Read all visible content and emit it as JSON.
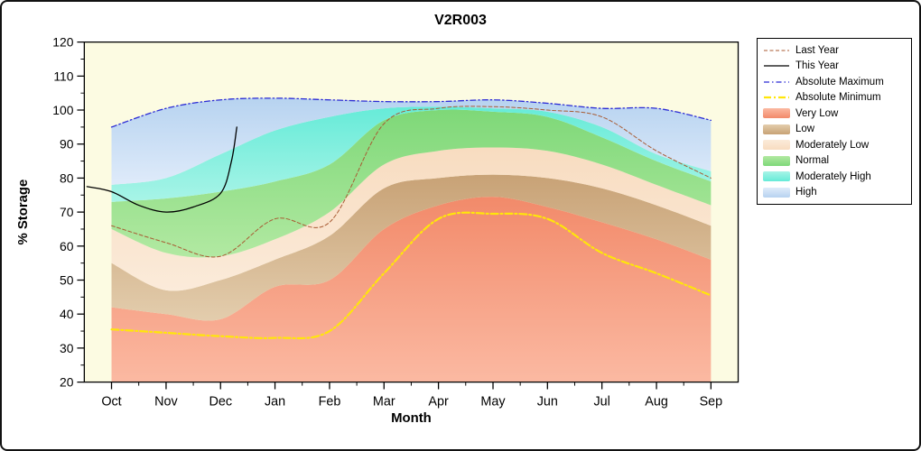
{
  "chart_data": {
    "type": "area",
    "title": "V2R003",
    "xlabel": "Month",
    "ylabel": "% Storage",
    "ylim": [
      20,
      120
    ],
    "y_ticks": [
      20,
      30,
      40,
      50,
      60,
      70,
      80,
      90,
      100,
      110,
      120
    ],
    "months": [
      "Oct",
      "Nov",
      "Dec",
      "Jan",
      "Feb",
      "Mar",
      "Apr",
      "May",
      "Jun",
      "Jul",
      "Aug",
      "Sep"
    ],
    "plot_bg": "#FCFBE2",
    "grid": false,
    "legend_position": "top-right",
    "bands": [
      {
        "name": "Very Low",
        "color": "#F28A6A",
        "color_light": "#FBB9A2",
        "top": [
          42,
          40,
          38.5,
          48,
          50,
          65,
          72,
          74.5,
          71.5,
          67,
          62,
          56
        ]
      },
      {
        "name": "Low",
        "color": "#C8A276",
        "color_light": "#E3CDAD",
        "top": [
          55,
          47,
          50,
          56,
          63,
          77,
          80,
          81,
          80,
          77,
          72,
          66
        ]
      },
      {
        "name": "Moderately Low",
        "color": "#F8DCC0",
        "color_light": "#FBEBDA",
        "top": [
          65,
          58,
          57,
          62,
          70,
          84,
          88,
          89,
          88,
          84,
          78,
          72
        ]
      },
      {
        "name": "Normal",
        "color": "#7ED878",
        "color_light": "#B2E9A2",
        "top": [
          73,
          74,
          76,
          79,
          84,
          97,
          100,
          99.5,
          98,
          92,
          85,
          79
        ]
      },
      {
        "name": "Moderately High",
        "color": "#66EBD8",
        "color_light": "#A8F4E7",
        "top": [
          78,
          80,
          87,
          94,
          98,
          100.5,
          101,
          100.5,
          99.5,
          95,
          87,
          82
        ]
      },
      {
        "name": "High",
        "color": "#B7D3F0",
        "color_light": "#DFEBFA",
        "top": [
          95,
          100.5,
          103,
          103.5,
          103,
          102.5,
          102.5,
          103,
          102,
          100.5,
          100.5,
          97
        ]
      }
    ],
    "lines": [
      {
        "name": "Absolute Maximum",
        "color": "#2B2BD5",
        "width": 1.3,
        "dash": "6,3,1.5,3",
        "values": [
          95,
          100.5,
          103,
          103.5,
          103,
          102.5,
          102.5,
          103,
          102,
          100.5,
          100.5,
          97
        ]
      },
      {
        "name": "Absolute Minimum",
        "color": "#FFE60A",
        "width": 2.2,
        "dash": "8,3,2,3",
        "values": [
          35.5,
          34.5,
          33.5,
          33,
          35,
          52,
          68,
          69.5,
          68,
          58,
          52,
          45.5
        ]
      },
      {
        "name": "Last Year",
        "color": "#A85A32",
        "width": 1,
        "dash": "4,2.5",
        "values": [
          66,
          61,
          57,
          68,
          67,
          96,
          100.5,
          101,
          100,
          98,
          88,
          80
        ]
      },
      {
        "name": "This Year",
        "color": "#000000",
        "width": 1.3,
        "dash": "",
        "x": [
          -0.45,
          0,
          0.5,
          1,
          1.5,
          2,
          2.2,
          2.3
        ],
        "values": [
          77.5,
          76,
          72,
          70,
          71.5,
          75.5,
          85,
          95
        ]
      }
    ],
    "legend": {
      "entries": [
        {
          "label": "Last Year",
          "kind": "line",
          "color": "#A85A32",
          "dash": "4,2.5",
          "width": 1
        },
        {
          "label": "This Year",
          "kind": "line",
          "color": "#000000",
          "dash": "",
          "width": 1.3
        },
        {
          "label": "Absolute Maximum",
          "kind": "line",
          "color": "#2B2BD5",
          "dash": "6,3,1.5,3",
          "width": 1.3
        },
        {
          "label": "Absolute Minimum",
          "kind": "line",
          "color": "#FFE60A",
          "dash": "8,3,2,3",
          "width": 2.2
        },
        {
          "label": "Very Low",
          "kind": "fill",
          "color": "#F28A6A",
          "color_light": "#FBB9A2"
        },
        {
          "label": "Low",
          "kind": "fill",
          "color": "#C8A276",
          "color_light": "#E3CDAD"
        },
        {
          "label": "Moderately Low",
          "kind": "fill",
          "color": "#F8DCC0",
          "color_light": "#FBEBDA"
        },
        {
          "label": "Normal",
          "kind": "fill",
          "color": "#7ED878",
          "color_light": "#B2E9A2"
        },
        {
          "label": "Moderately High",
          "kind": "fill",
          "color": "#66EBD8",
          "color_light": "#A8F4E7"
        },
        {
          "label": "High",
          "kind": "fill",
          "color": "#B7D3F0",
          "color_light": "#DFEBFA"
        }
      ]
    }
  }
}
